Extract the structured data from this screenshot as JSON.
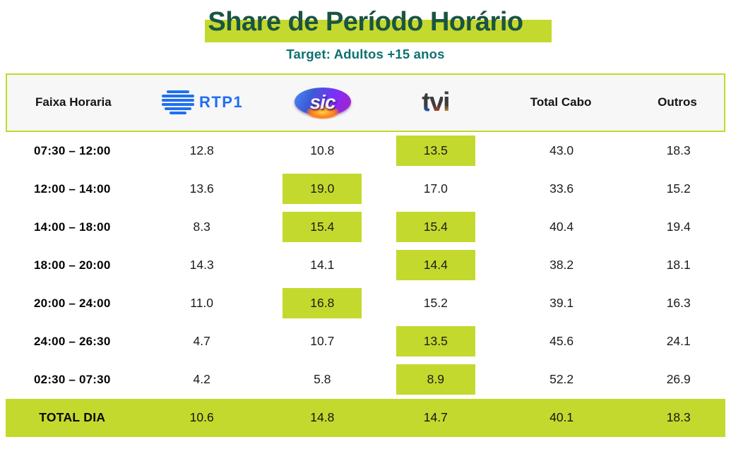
{
  "header": {
    "title": "Share de Período Horário",
    "subtitle": "Target: Adultos +15 anos"
  },
  "colors": {
    "accent_lime": "#c4d92d",
    "title_green": "#1b5443",
    "subtitle_teal": "#0e7070",
    "rtp_blue": "#1f6ff2"
  },
  "table": {
    "columns": [
      "Faixa Horaria",
      "RTP1",
      "SIC",
      "TVI",
      "Total Cabo",
      "Outros"
    ],
    "logos": {
      "rtp1": "RTP1",
      "sic": "sic",
      "tvi_letters": [
        "t",
        "v",
        "i"
      ]
    },
    "rows": [
      {
        "label": "07:30 – 12:00",
        "values": [
          "12.8",
          "10.8",
          "13.5",
          "43.0",
          "18.3"
        ],
        "highlights": [
          2
        ]
      },
      {
        "label": "12:00 – 14:00",
        "values": [
          "13.6",
          "19.0",
          "17.0",
          "33.6",
          "15.2"
        ],
        "highlights": [
          1
        ]
      },
      {
        "label": "14:00 – 18:00",
        "values": [
          "8.3",
          "15.4",
          "15.4",
          "40.4",
          "19.4"
        ],
        "highlights": [
          1,
          2
        ]
      },
      {
        "label": "18:00 – 20:00",
        "values": [
          "14.3",
          "14.1",
          "14.4",
          "38.2",
          "18.1"
        ],
        "highlights": [
          2
        ]
      },
      {
        "label": "20:00 – 24:00",
        "values": [
          "11.0",
          "16.8",
          "15.2",
          "39.1",
          "16.3"
        ],
        "highlights": [
          1
        ]
      },
      {
        "label": "24:00 – 26:30",
        "values": [
          "4.7",
          "10.7",
          "13.5",
          "45.6",
          "24.1"
        ],
        "highlights": [
          2
        ]
      },
      {
        "label": "02:30 – 07:30",
        "values": [
          "4.2",
          "5.8",
          "8.9",
          "52.2",
          "26.9"
        ],
        "highlights": [
          2
        ]
      }
    ],
    "total": {
      "label": "TOTAL DIA",
      "values": [
        "10.6",
        "14.8",
        "14.7",
        "40.1",
        "18.3"
      ]
    }
  },
  "chart_data": {
    "type": "table",
    "title": "Share de Período Horário",
    "subtitle": "Target: Adultos +15 anos",
    "columns": [
      "Faixa Horaria",
      "RTP1",
      "SIC",
      "TVI",
      "Total Cabo",
      "Outros"
    ],
    "categories": [
      "07:30 – 12:00",
      "12:00 – 14:00",
      "14:00 – 18:00",
      "18:00 – 20:00",
      "20:00 – 24:00",
      "24:00 – 26:30",
      "02:30 – 07:30",
      "TOTAL DIA"
    ],
    "series": [
      {
        "name": "RTP1",
        "values": [
          12.8,
          13.6,
          8.3,
          14.3,
          11.0,
          4.7,
          4.2
        ],
        "total": 10.6
      },
      {
        "name": "SIC",
        "values": [
          10.8,
          19.0,
          15.4,
          14.1,
          16.8,
          10.7,
          5.8
        ],
        "total": 14.8
      },
      {
        "name": "TVI",
        "values": [
          13.5,
          17.0,
          15.4,
          14.4,
          15.2,
          13.5,
          8.9
        ],
        "total": 14.7
      },
      {
        "name": "Total Cabo",
        "values": [
          43.0,
          33.6,
          40.4,
          38.2,
          39.1,
          45.6,
          52.2
        ],
        "total": 40.1
      },
      {
        "name": "Outros",
        "values": [
          18.3,
          15.2,
          19.4,
          18.1,
          16.3,
          24.1,
          26.9
        ],
        "total": 18.3
      }
    ],
    "highlighted_cells_note": "Lime highlight marks the leading broadcast channel (among RTP1/SIC/TVI) per time slot; entire TOTAL DIA row is lime"
  }
}
